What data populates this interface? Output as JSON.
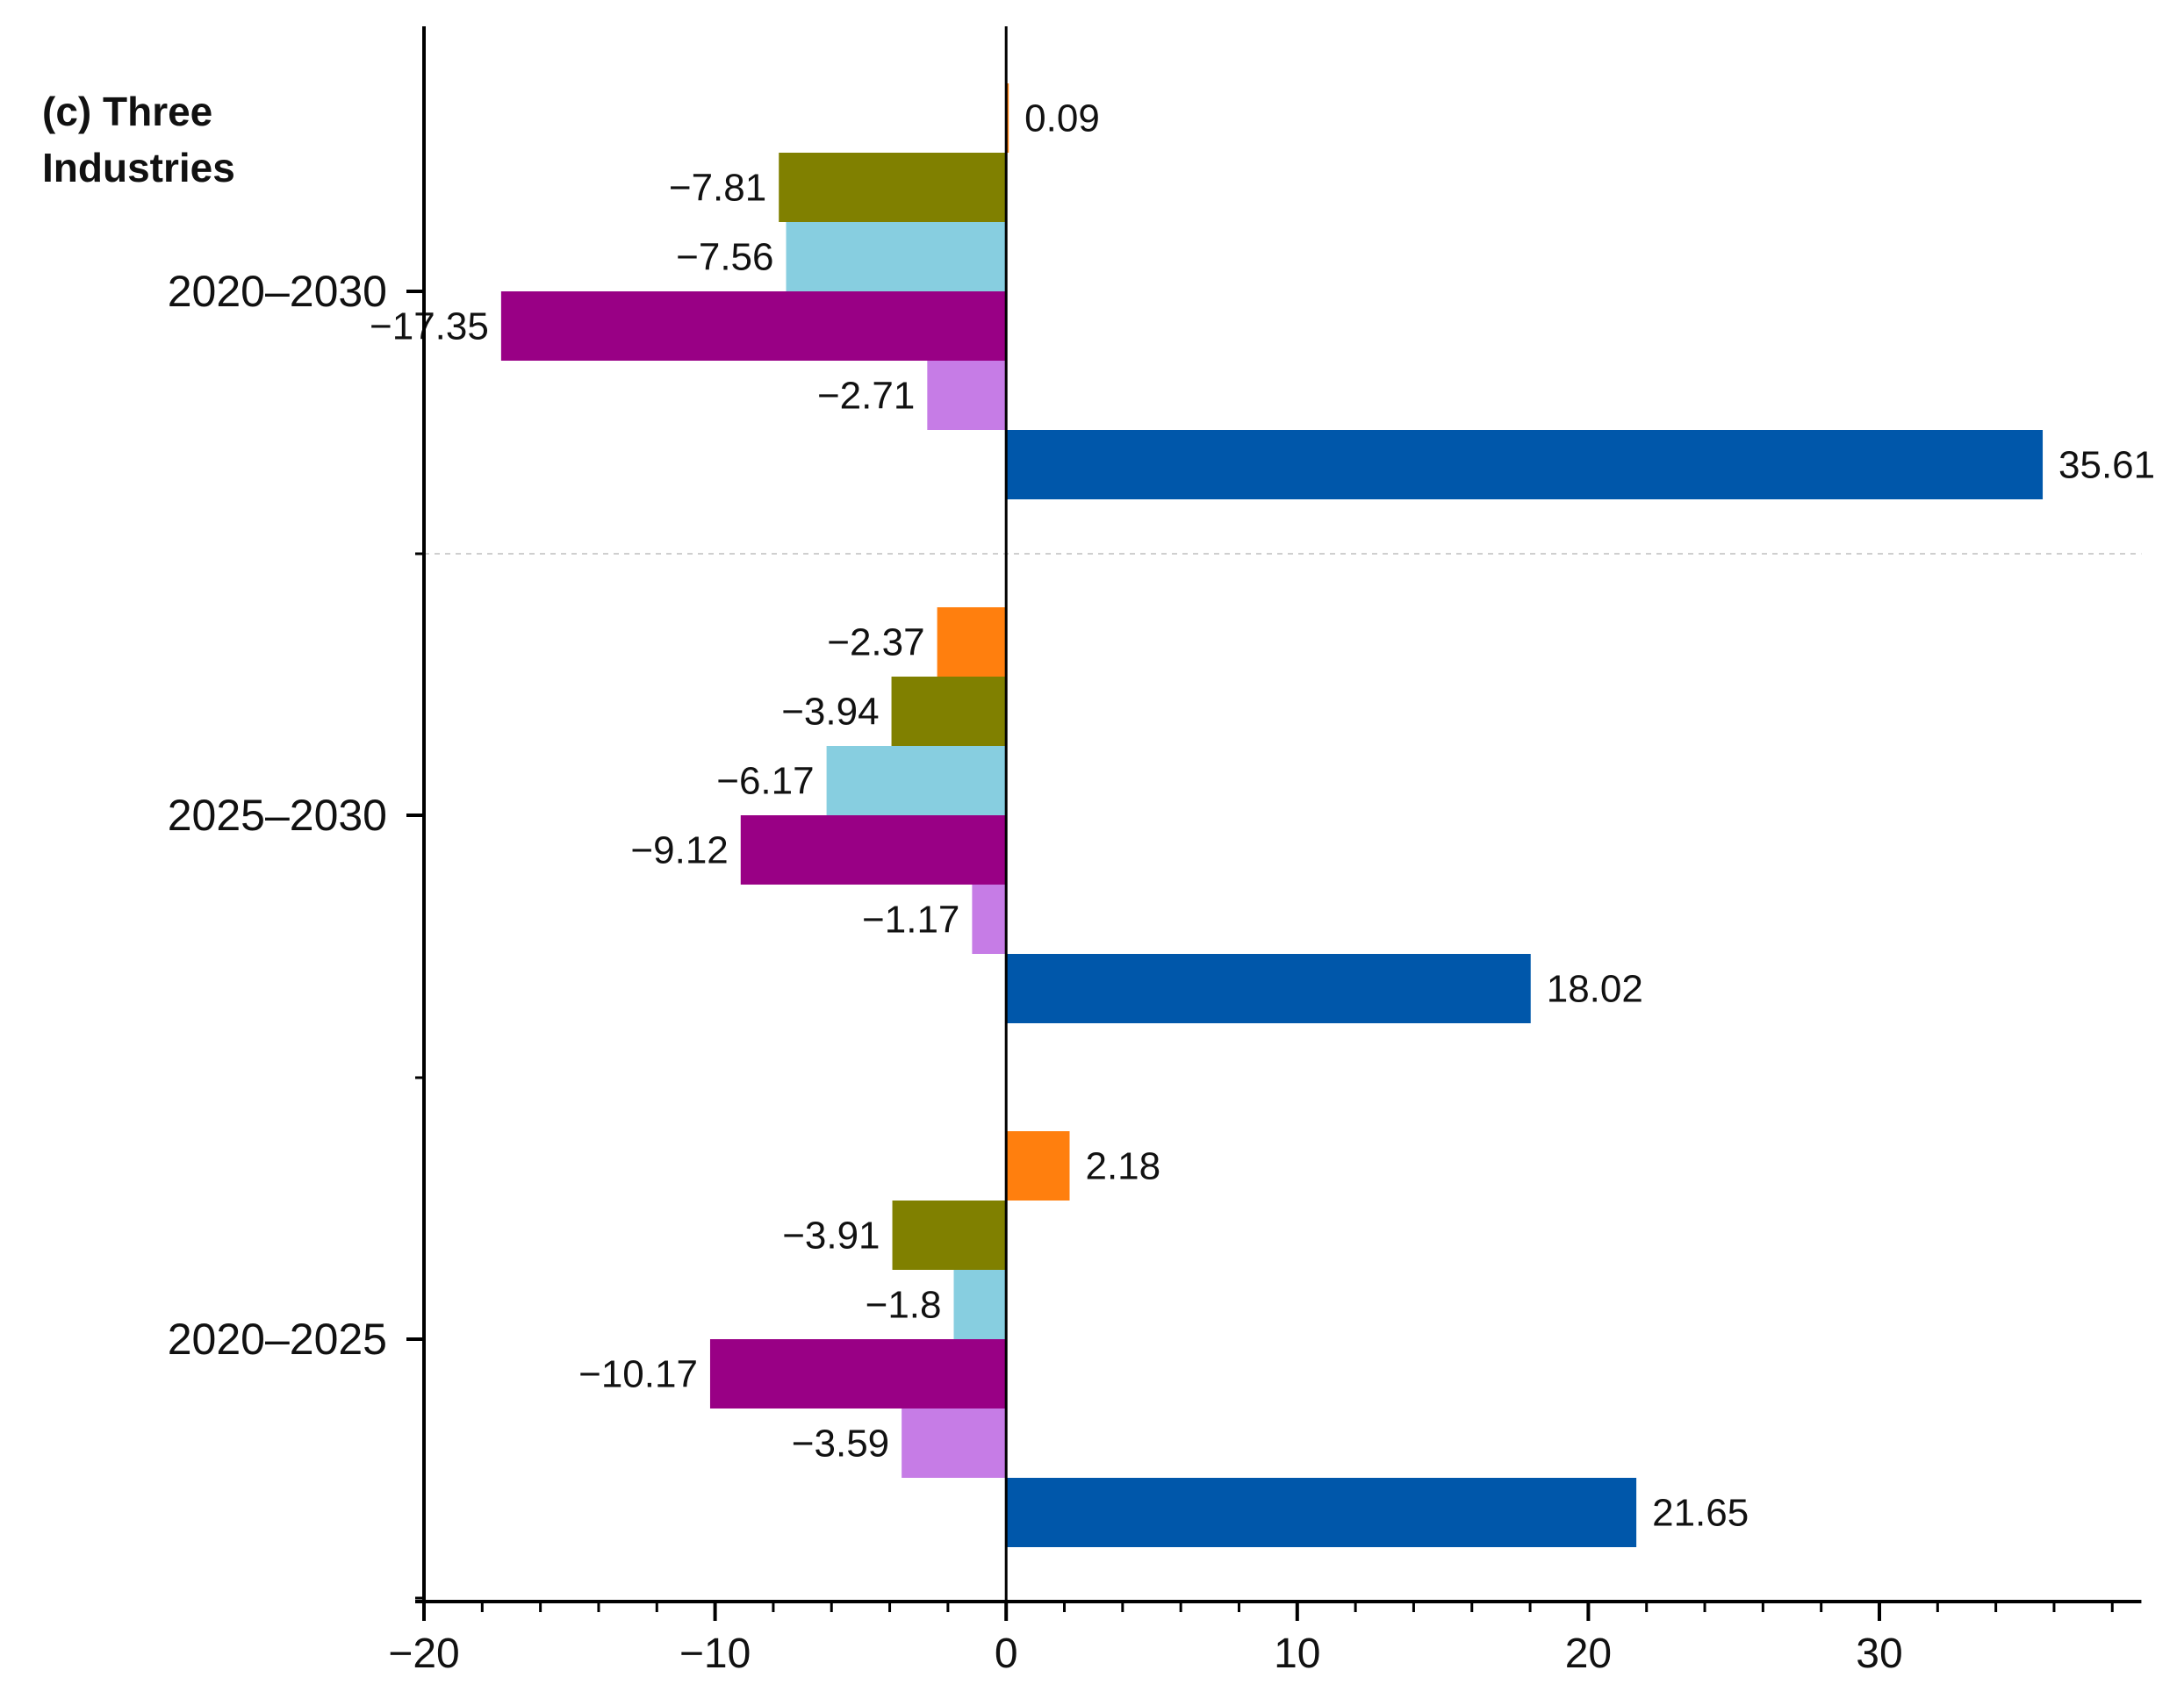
{
  "chart_data": {
    "type": "bar",
    "orientation": "horizontal",
    "title_lines": [
      "(c) Three",
      "Industries"
    ],
    "xlabel": "",
    "ylabel": "",
    "xlim": [
      -20,
      39
    ],
    "xticks": [
      -20,
      -10,
      0,
      10,
      20,
      30
    ],
    "xtick_labels": [
      "−20",
      "−10",
      "0",
      "10",
      "20",
      "30"
    ],
    "grid": false,
    "categories": [
      "2020–2030",
      "2025–2030",
      "2020–2025"
    ],
    "series": [
      {
        "name": "series-1",
        "color": "#FF7F0E",
        "values": [
          0.09,
          -2.37,
          2.18
        ],
        "labels": [
          "0.09",
          "−2.37",
          "2.18"
        ]
      },
      {
        "name": "series-2",
        "color": "#808000",
        "values": [
          -7.81,
          -3.94,
          -3.91
        ],
        "labels": [
          "−7.81",
          "−3.94",
          "−3.91"
        ]
      },
      {
        "name": "series-3",
        "color": "#87CEE0",
        "values": [
          -7.56,
          -6.17,
          -1.8
        ],
        "labels": [
          "−7.56",
          "−6.17",
          "−1.8"
        ]
      },
      {
        "name": "series-4",
        "color": "#990085",
        "values": [
          -17.35,
          -9.12,
          -10.17
        ],
        "labels": [
          "−17.35",
          "−9.12",
          "−10.17"
        ]
      },
      {
        "name": "series-5",
        "color": "#C67CE6",
        "values": [
          -2.71,
          -1.17,
          -3.59
        ],
        "labels": [
          "−2.71",
          "−1.17",
          "−3.59"
        ]
      },
      {
        "name": "series-6",
        "color": "#0057AA",
        "values": [
          35.61,
          18.02,
          21.65
        ],
        "labels": [
          "35.61",
          "18.02",
          "21.65"
        ]
      }
    ]
  }
}
